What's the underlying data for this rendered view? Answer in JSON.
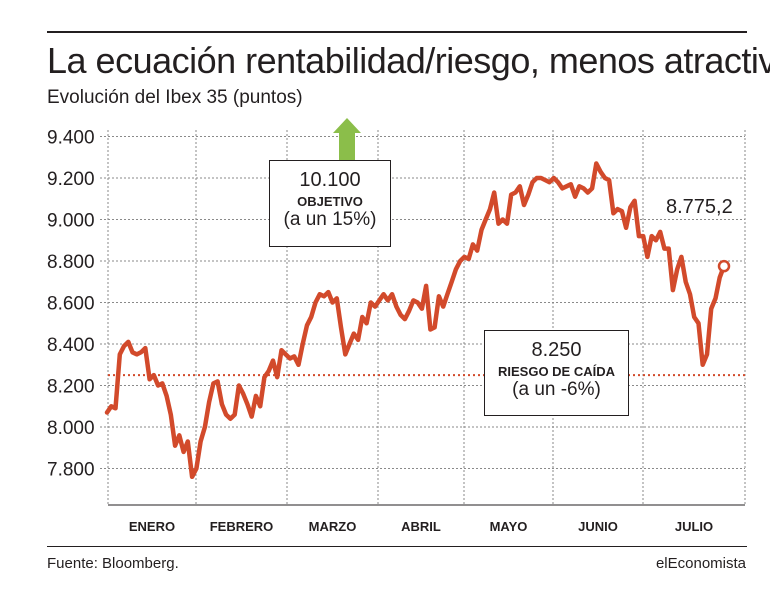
{
  "title": "La ecuación rentabilidad/riesgo, menos atractiva",
  "subtitle": "Evolución del Ibex 35 (puntos)",
  "source": "Fuente: Bloomberg.",
  "brand": "elEconomista",
  "colors": {
    "line": "#d24a2b",
    "arrow": "#8bbe4a",
    "grid": "#8a8a8a",
    "text": "#231f20"
  },
  "annotations": {
    "objetivo": {
      "value": "10.100",
      "label": "OBJETIVO",
      "note": "(a un 15%)",
      "icon": "up-arrow-icon"
    },
    "riesgo": {
      "value": "8.250",
      "label": "RIESGO DE CAÍDA",
      "note": "(a un -6%)"
    },
    "last_value": "8.775,2"
  },
  "chart_data": {
    "type": "line",
    "title": "La ecuación rentabilidad/riesgo, menos atractiva",
    "subtitle": "Evolución del Ibex 35 (puntos)",
    "xlabel": "",
    "ylabel": "",
    "ylim": [
      7700,
      9400
    ],
    "yticks": [
      9400,
      9200,
      9000,
      8800,
      8600,
      8400,
      8200,
      8000,
      7800
    ],
    "ytick_labels": [
      "9.400",
      "9.200",
      "9.000",
      "8.800",
      "8.600",
      "8.400",
      "8.200",
      "8.000",
      "7.800"
    ],
    "months": [
      "ENERO",
      "FEBRERO",
      "MARZO",
      "ABRIL",
      "MAYO",
      "JUNIO",
      "JULIO"
    ],
    "grid": "vertical dashed month separators, horizontal at y ticks",
    "reference_line": {
      "value": 8250,
      "style": "dotted",
      "color": "#d24a2b"
    },
    "series": [
      {
        "values": [
          8070,
          8100,
          8090,
          8350,
          8390,
          8410,
          8360,
          8350,
          8360,
          8380,
          8230,
          8250,
          8200,
          8210,
          8150,
          8060,
          7910,
          7960,
          7880,
          7930,
          7760,
          7800,
          7930,
          8000,
          8120,
          8210,
          8220,
          8110,
          8060,
          8040,
          8060,
          8200,
          8160,
          8110,
          8050,
          8150,
          8100,
          8240,
          8270,
          8320,
          8240,
          8370,
          8350,
          8330,
          8340,
          8300,
          8400,
          8490,
          8530,
          8600,
          8640,
          8630,
          8650,
          8600,
          8620,
          8480,
          8350,
          8400,
          8450,
          8420,
          8530,
          8500,
          8600,
          8580,
          8610,
          8640,
          8610,
          8640,
          8580,
          8540,
          8520,
          8560,
          8610,
          8600,
          8570,
          8680,
          8470,
          8480,
          8630,
          8580,
          8640,
          8700,
          8760,
          8800,
          8820,
          8810,
          8880,
          8850,
          8950,
          9000,
          9050,
          9130,
          8980,
          9000,
          8980,
          9120,
          9130,
          9160,
          9070,
          9120,
          9180,
          9200,
          9200,
          9190,
          9180,
          9200,
          9180,
          9150,
          9160,
          9170,
          9110,
          9160,
          9150,
          9130,
          9150,
          9270,
          9230,
          9200,
          9190,
          9030,
          9050,
          9040,
          8960,
          9060,
          9090,
          8920,
          8920,
          8820,
          8920,
          8900,
          8940,
          8860,
          8860,
          8660,
          8760,
          8820,
          8700,
          8640,
          8530,
          8500,
          8300,
          8350,
          8570,
          8620,
          8720,
          8775.2
        ]
      }
    ]
  }
}
